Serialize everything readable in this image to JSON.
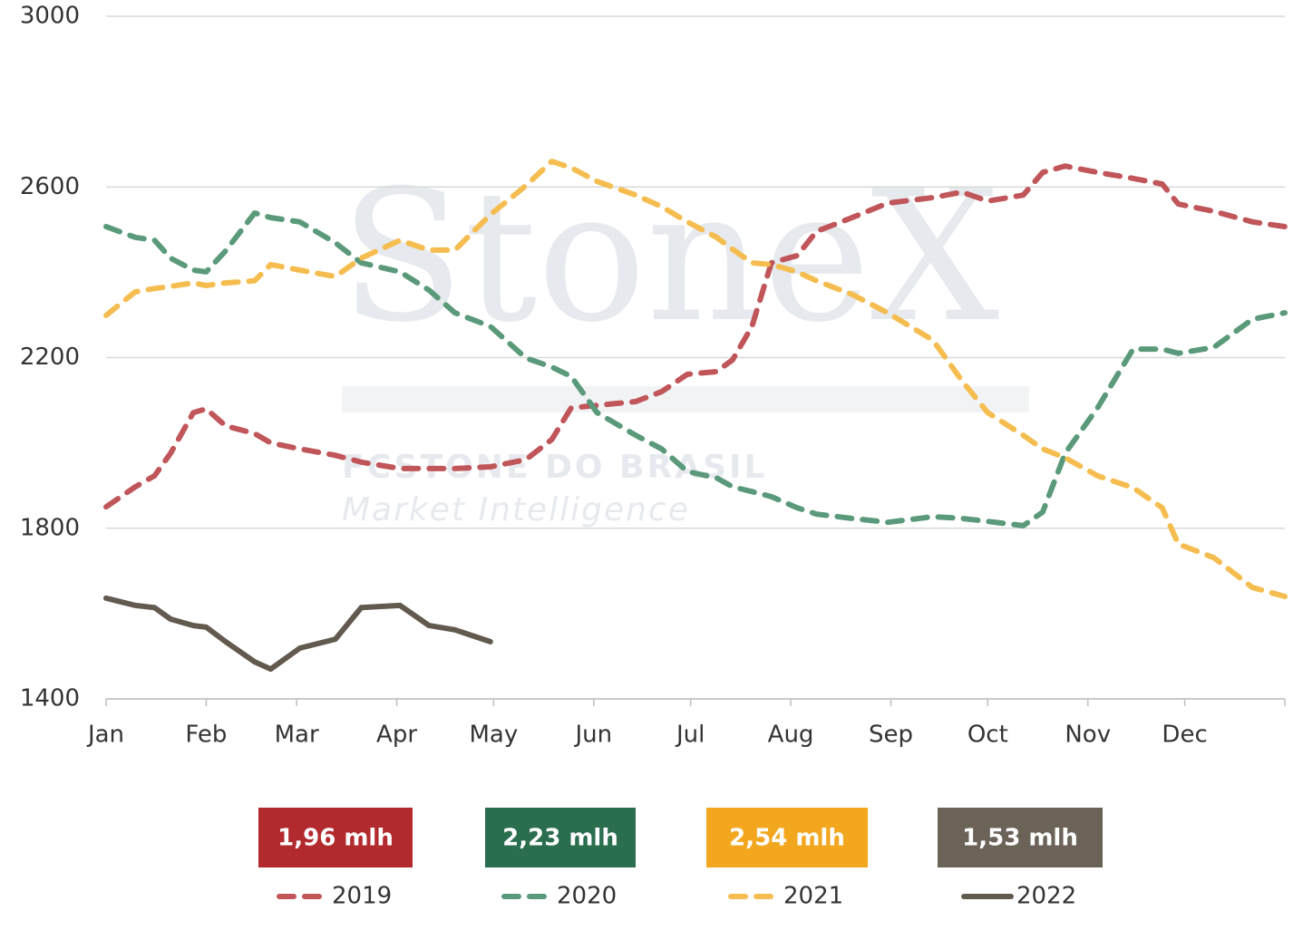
{
  "chart_data": {
    "type": "line",
    "watermark": [
      "StoneX",
      "FCSTONE DO BRASIL",
      "Market Intelligence"
    ],
    "x": [
      0,
      9,
      15,
      20,
      27,
      31,
      37,
      46,
      51,
      60,
      71,
      79,
      91,
      100,
      108,
      119,
      130,
      138,
      144,
      152,
      164,
      172,
      180,
      189,
      194,
      200,
      206,
      214,
      220,
      231,
      242,
      256,
      265,
      273,
      284,
      290,
      297,
      307,
      318,
      327,
      332,
      343,
      355,
      365
    ],
    "xlim": [
      0,
      365
    ],
    "xticks": [
      {
        "value": 0,
        "label": "Jan"
      },
      {
        "value": 31,
        "label": "Feb"
      },
      {
        "value": 59,
        "label": "Mar"
      },
      {
        "value": 90,
        "label": "Apr"
      },
      {
        "value": 120,
        "label": "May"
      },
      {
        "value": 151,
        "label": "Jun"
      },
      {
        "value": 181,
        "label": "Jul"
      },
      {
        "value": 212,
        "label": "Aug"
      },
      {
        "value": 243,
        "label": "Sep"
      },
      {
        "value": 273,
        "label": "Oct"
      },
      {
        "value": 304,
        "label": "Nov"
      },
      {
        "value": 334,
        "label": "Dec"
      }
    ],
    "ylim": [
      1400,
      3000
    ],
    "yticks": [
      1400,
      1800,
      2200,
      2600,
      3000
    ],
    "grid": true,
    "legend": "bottom",
    "series": [
      {
        "name": "2019",
        "color": "#c0555a",
        "dashed": true,
        "badge": "1,96 mlh",
        "badge_color": "#b22a2e",
        "values": [
          1850,
          1897,
          1923,
          1976,
          2071,
          2080,
          2040,
          2022,
          2000,
          1986,
          1971,
          1955,
          1940,
          1940,
          1940,
          1944,
          1961,
          2008,
          2082,
          2088,
          2097,
          2120,
          2161,
          2167,
          2195,
          2273,
          2422,
          2439,
          2496,
          2528,
          2562,
          2575,
          2588,
          2567,
          2581,
          2634,
          2649,
          2634,
          2620,
          2607,
          2560,
          2543,
          2518,
          2507
        ]
      },
      {
        "name": "2020",
        "color": "#5a9a7a",
        "dashed": true,
        "badge": "2,23 mlh",
        "badge_color": "#2a6e4f",
        "values": [
          2507,
          2482,
          2475,
          2433,
          2405,
          2401,
          2450,
          2539,
          2528,
          2518,
          2469,
          2422,
          2401,
          2358,
          2305,
          2273,
          2199,
          2178,
          2156,
          2071,
          2018,
          1986,
          1933,
          1918,
          1897,
          1886,
          1874,
          1848,
          1833,
          1823,
          1814,
          1827,
          1823,
          1816,
          1806,
          1838,
          1976,
          2082,
          2220,
          2220,
          2210,
          2224,
          2290,
          2305
        ]
      },
      {
        "name": "2021",
        "color": "#f5bd50",
        "dashed": true,
        "badge": "2,54 mlh",
        "badge_color": "#f2a71e",
        "values": [
          2299,
          2354,
          2362,
          2367,
          2375,
          2369,
          2375,
          2380,
          2418,
          2405,
          2390,
          2433,
          2475,
          2452,
          2452,
          2535,
          2603,
          2660,
          2645,
          2613,
          2581,
          2554,
          2518,
          2482,
          2454,
          2422,
          2418,
          2401,
          2380,
          2348,
          2305,
          2241,
          2146,
          2071,
          2018,
          1986,
          1965,
          1923,
          1895,
          1848,
          1763,
          1731,
          1661,
          1640
        ]
      },
      {
        "name": "2022",
        "color": "#62594f",
        "dashed": false,
        "badge": "1,53 mlh",
        "badge_color": "#6b6258",
        "values": [
          1636,
          1619,
          1614,
          1587,
          1572,
          1568,
          1534,
          1487,
          1470,
          1519,
          1540,
          1614,
          1619,
          1572,
          1562,
          1534,
          null,
          null,
          null,
          null,
          null,
          null,
          null,
          null,
          null,
          null,
          null,
          null,
          null,
          null,
          null,
          null,
          null,
          null,
          null,
          null,
          null,
          null,
          null,
          null,
          null,
          null,
          null,
          null
        ]
      }
    ]
  }
}
